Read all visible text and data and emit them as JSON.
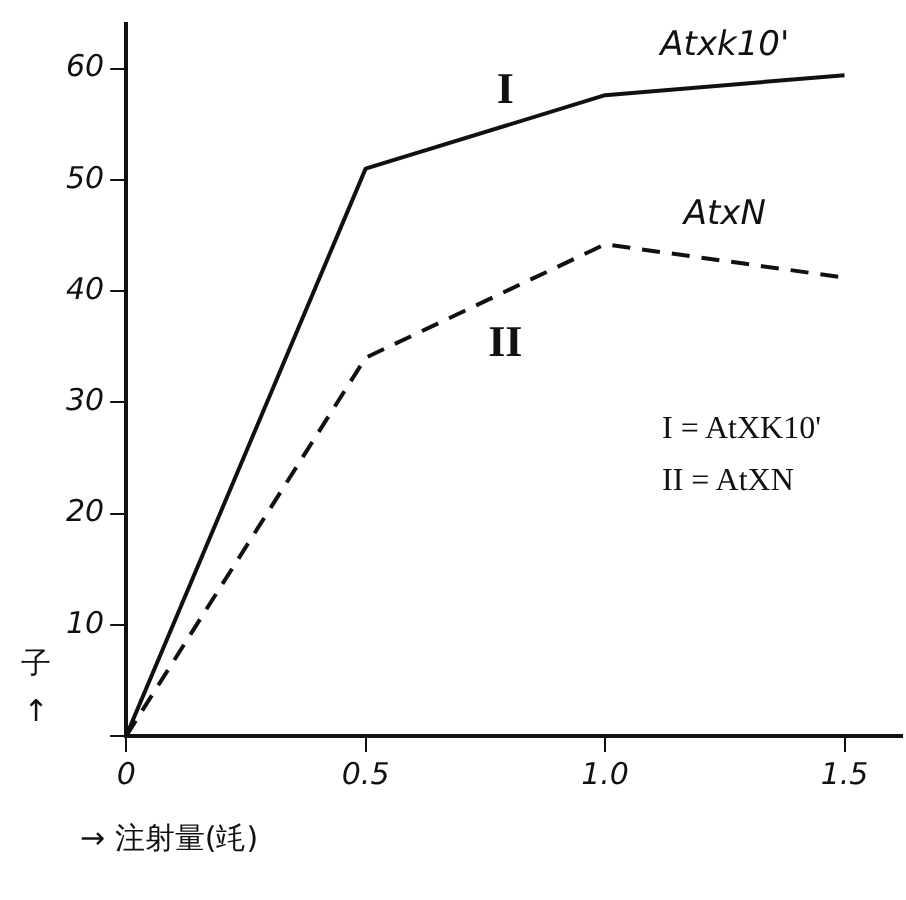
{
  "chart_data": {
    "type": "line",
    "xlabel": "→ 注射量(竓)",
    "ylabel": "子 ↑",
    "x": [
      0,
      0.5,
      1.0,
      1.5
    ],
    "series": [
      {
        "name": "I",
        "color": "#111111",
        "line_style": "solid",
        "values": [
          0,
          51,
          57.6,
          59.4
        ]
      },
      {
        "name": "II",
        "color": "#111111",
        "line_style": "dashed",
        "values": [
          0,
          34,
          44.2,
          41.2
        ]
      }
    ],
    "xlim": [
      0,
      1.62
    ],
    "xticks": [
      0,
      0.5,
      {
        "value": 1.0,
        "label": "1.0"
      },
      1.5
    ],
    "ylim": [
      0,
      64
    ],
    "yticks": [
      {
        "value": 0,
        "label": null
      },
      10,
      20,
      30,
      40,
      50,
      60
    ],
    "grid": false,
    "legend": false,
    "marker": "none",
    "annotations": [
      "Atxk10'",
      "AtxN",
      "I = AtXK10'",
      "II = AtXN"
    ]
  }
}
